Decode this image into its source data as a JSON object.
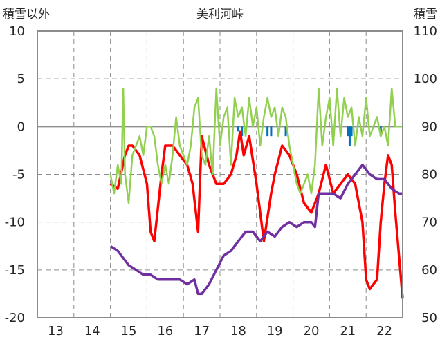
{
  "chart_data": {
    "type": "line",
    "title": "美利河峠",
    "ylabel_left": "積雪以外",
    "ylabel_right": "積雪",
    "x_ticks": [
      "13",
      "14",
      "15",
      "16",
      "17",
      "18",
      "19",
      "20",
      "21",
      "22"
    ],
    "ylim_left": [
      -20,
      10
    ],
    "ylim_right": [
      50,
      110
    ],
    "y_ticks_left": [
      "10",
      "5",
      "0",
      "-5",
      "-10",
      "-15",
      "-20"
    ],
    "y_ticks_right": [
      "110",
      "100",
      "90",
      "80",
      "70",
      "60",
      "50"
    ],
    "grid": true,
    "legend": "none",
    "series": [
      {
        "axis": "left",
        "color": "#ff0000",
        "x": [
          14.5,
          14.7,
          14.9,
          15.0,
          15.1,
          15.3,
          15.5,
          15.6,
          15.7,
          15.9,
          16.0,
          16.2,
          16.4,
          16.6,
          16.75,
          16.9,
          17.0,
          17.2,
          17.4,
          17.6,
          17.8,
          17.95,
          18.05,
          18.15,
          18.3,
          18.5,
          18.7,
          18.9,
          19.0,
          19.2,
          19.4,
          19.6,
          19.8,
          20.0,
          20.2,
          20.4,
          20.6,
          20.8,
          21.0,
          21.2,
          21.4,
          21.5,
          21.6,
          21.8,
          21.9,
          22.0,
          22.1,
          22.2,
          22.3,
          22.5
        ],
        "y": [
          -6,
          -6.5,
          -3,
          -2,
          -2,
          -3,
          -6,
          -11,
          -12,
          -5,
          -2,
          -2,
          -3,
          -4,
          -6,
          -11,
          -1,
          -4,
          -6,
          -6,
          -5,
          -3,
          -0.5,
          -3,
          -1,
          -6,
          -12,
          -7,
          -5,
          -2,
          -3,
          -5,
          -8,
          -9,
          -7,
          -4,
          -7,
          -6,
          -5,
          -6,
          -10,
          -16,
          -17,
          -16,
          -10,
          -6,
          -3,
          -4,
          -9,
          -18
        ]
      },
      {
        "axis": "left",
        "color": "#92d050",
        "x": [
          14.5,
          14.6,
          14.7,
          14.8,
          14.85,
          14.9,
          15.0,
          15.1,
          15.2,
          15.3,
          15.4,
          15.5,
          15.6,
          15.7,
          15.8,
          15.9,
          16.0,
          16.1,
          16.2,
          16.3,
          16.4,
          16.5,
          16.6,
          16.7,
          16.8,
          16.9,
          17.0,
          17.1,
          17.2,
          17.3,
          17.4,
          17.5,
          17.6,
          17.7,
          17.8,
          17.9,
          18.0,
          18.1,
          18.2,
          18.3,
          18.4,
          18.5,
          18.6,
          18.7,
          18.8,
          18.9,
          19.0,
          19.1,
          19.2,
          19.3,
          19.4,
          19.5,
          19.6,
          19.7,
          19.8,
          19.9,
          20.0,
          20.1,
          20.2,
          20.3,
          20.4,
          20.5,
          20.6,
          20.7,
          20.8,
          20.9,
          21.0,
          21.1,
          21.2,
          21.3,
          21.4,
          21.5,
          21.6,
          21.7,
          21.8,
          21.9,
          22.0,
          22.1,
          22.2,
          22.3,
          22.5
        ],
        "y": [
          -5,
          -7,
          -4,
          -6,
          4,
          -5,
          -8,
          -3,
          -2,
          -1,
          -3,
          0,
          0,
          -1,
          -4,
          -6,
          -4,
          -6,
          -3,
          1,
          -2,
          -3,
          -4,
          -2,
          2,
          3,
          -3,
          -4,
          -1,
          -5,
          4,
          -2,
          1,
          2,
          -4,
          3,
          1,
          2,
          -1,
          3,
          0,
          2,
          -2,
          1,
          3,
          1,
          2,
          -1,
          2,
          1,
          -2,
          -4,
          -6,
          -7,
          -6,
          -5,
          -7,
          -4,
          4,
          -2,
          1,
          3,
          -2,
          4,
          -1,
          3,
          1,
          2,
          -2,
          1,
          -1,
          3,
          -1,
          0,
          1,
          -1,
          0,
          -2,
          4,
          0,
          0
        ]
      },
      {
        "axis": "left",
        "color": "#7030a0",
        "x": [
          14.5,
          14.7,
          14.9,
          15.0,
          15.2,
          15.4,
          15.6,
          15.8,
          16.0,
          16.2,
          16.4,
          16.6,
          16.8,
          16.9,
          17.0,
          17.2,
          17.4,
          17.6,
          17.8,
          18.0,
          18.2,
          18.4,
          18.6,
          18.8,
          19.0,
          19.2,
          19.4,
          19.6,
          19.8,
          20.0,
          20.1,
          20.2,
          20.4,
          20.6,
          20.8,
          21.0,
          21.2,
          21.4,
          21.6,
          21.8,
          22.0,
          22.2,
          22.4,
          22.5
        ],
        "y": [
          -12.5,
          -13,
          -14,
          -14.5,
          -15,
          -15.5,
          -15.5,
          -16,
          -16,
          -16,
          -16,
          -16.5,
          -16,
          -17.5,
          -17.5,
          -16.5,
          -15,
          -13.5,
          -13,
          -12,
          -11,
          -11,
          -12,
          -11,
          -11.5,
          -10.5,
          -10,
          -10.5,
          -10,
          -10,
          -10.5,
          -7,
          -7,
          -7,
          -7.5,
          -6,
          -5,
          -4,
          -5,
          -5.5,
          -5.5,
          -6.5,
          -7,
          -7
        ]
      }
    ],
    "bars": {
      "axis": "left",
      "color": "#0070c0",
      "x": [
        18.0,
        18.1,
        18.8,
        18.9,
        19.3,
        21.0,
        21.05,
        21.1,
        21.9
      ],
      "y": [
        -0.5,
        -1,
        -1,
        -1,
        -1,
        -1,
        -2,
        -1,
        -1
      ]
    }
  }
}
